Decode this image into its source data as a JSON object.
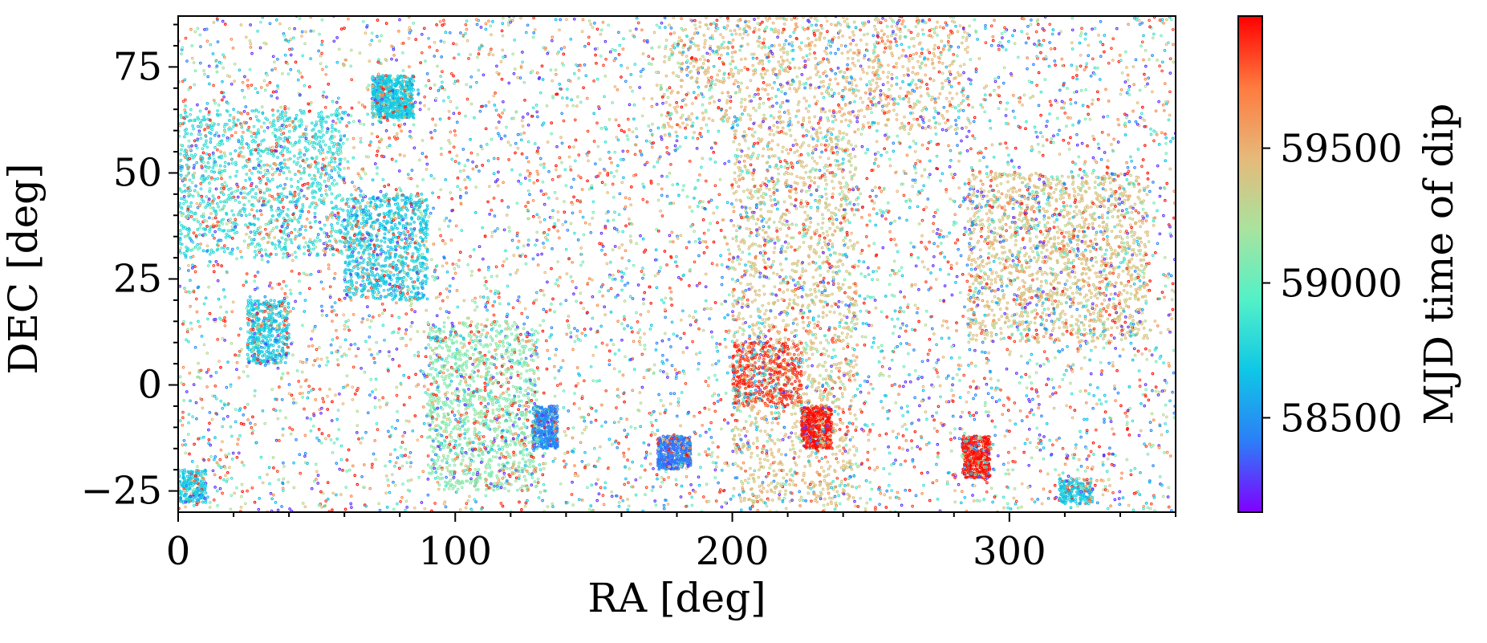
{
  "chart_data": {
    "type": "scatter",
    "title": "",
    "xlabel": "RA [deg]",
    "ylabel": "DEC [deg]",
    "xlim": [
      0,
      360
    ],
    "ylim": [
      -30,
      87
    ],
    "xticks": [
      0,
      100,
      200,
      300
    ],
    "yticks": [
      -25,
      0,
      25,
      50,
      75
    ],
    "xtick_labels": [
      "0",
      "100",
      "200",
      "300"
    ],
    "ytick_labels": [
      "−25",
      "0",
      "25",
      "50",
      "75"
    ],
    "grid": false,
    "legend": "none",
    "colorbar": {
      "label": "MJD time of dip",
      "colormap": "rainbow",
      "range": [
        58150,
        59990
      ],
      "ticks": [
        58500,
        59000,
        59500
      ],
      "tick_labels": [
        "58500",
        "59000",
        "59500"
      ],
      "colors": [
        "#8000ff",
        "#2c7ef7",
        "#0fc7e6",
        "#53f1c8",
        "#a9e39e",
        "#e6b97a",
        "#ff7a3f",
        "#ff0000"
      ]
    },
    "point_clusters": [
      {
        "ra": [
          70,
          85
        ],
        "dec": [
          63,
          73
        ],
        "mjd": 58700,
        "weight": 3,
        "note": "cyan clump"
      },
      {
        "ra": [
          60,
          90
        ],
        "dec": [
          20,
          45
        ],
        "mjd": 58700,
        "weight": 4
      },
      {
        "ra": [
          25,
          40
        ],
        "dec": [
          5,
          20
        ],
        "mjd": 58700,
        "weight": 2
      },
      {
        "ra": [
          0,
          10
        ],
        "dec": [
          -28,
          -20
        ],
        "mjd": 58700,
        "weight": 1
      },
      {
        "ra": [
          128,
          137
        ],
        "dec": [
          -15,
          -5
        ],
        "mjd": 58450,
        "weight": 2,
        "note": "blue clump"
      },
      {
        "ra": [
          173,
          185
        ],
        "dec": [
          -20,
          -12
        ],
        "mjd": 58400,
        "weight": 2,
        "note": "blue clump"
      },
      {
        "ra": [
          90,
          130
        ],
        "dec": [
          -25,
          15
        ],
        "mjd": 59100,
        "weight": 5
      },
      {
        "ra": [
          200,
          245
        ],
        "dec": [
          -28,
          60
        ],
        "mjd": 59400,
        "weight": 7,
        "note": "khaki region"
      },
      {
        "ra": [
          175,
          285
        ],
        "dec": [
          60,
          87
        ],
        "mjd": 59450,
        "weight": 4
      },
      {
        "ra": [
          285,
          350
        ],
        "dec": [
          10,
          50
        ],
        "mjd": 59400,
        "weight": 7
      },
      {
        "ra": [
          225,
          236
        ],
        "dec": [
          -15,
          -5
        ],
        "mjd": 59950,
        "weight": 2,
        "note": "red clump"
      },
      {
        "ra": [
          283,
          293
        ],
        "dec": [
          -22,
          -12
        ],
        "mjd": 59950,
        "weight": 2,
        "note": "red clump"
      },
      {
        "ra": [
          200,
          225
        ],
        "dec": [
          -5,
          10
        ],
        "mjd": 59900,
        "weight": 2
      },
      {
        "ra": [
          318,
          330
        ],
        "dec": [
          -28,
          -22
        ],
        "mjd": 58700,
        "weight": 1
      },
      {
        "ra": [
          0,
          60
        ],
        "dec": [
          30,
          65
        ],
        "mjd": 58800,
        "weight": 5
      },
      {
        "ra": [
          0,
          360
        ],
        "dec": [
          -30,
          87
        ],
        "mjd": 59000,
        "weight": 30,
        "note": "background field, all colors"
      }
    ]
  }
}
